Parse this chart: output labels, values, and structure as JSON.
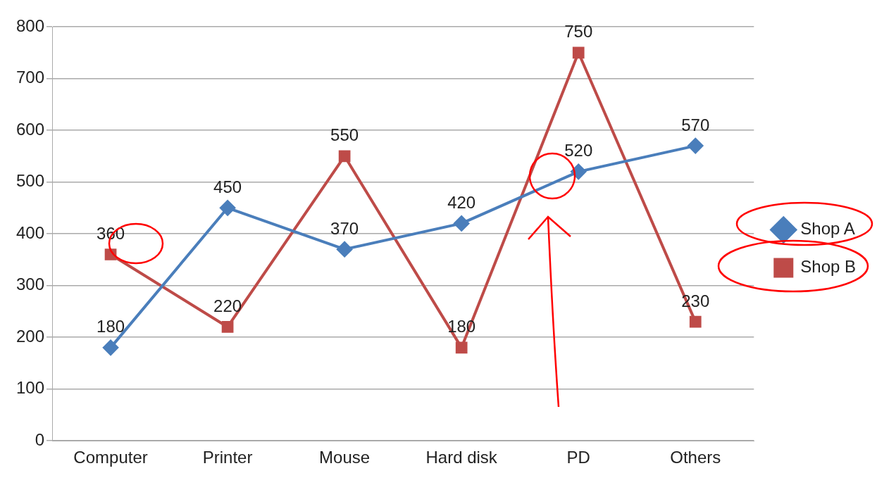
{
  "chart_data": {
    "type": "line",
    "categories": [
      "Computer",
      "Printer",
      "Mouse",
      "Hard disk",
      "PD",
      "Others"
    ],
    "series": [
      {
        "name": "Shop A",
        "color": "#4a7ebb",
        "values": [
          180,
          450,
          370,
          420,
          520,
          570
        ],
        "marker": "diamond"
      },
      {
        "name": "Shop B",
        "color": "#be4b48",
        "values": [
          360,
          220,
          550,
          180,
          750,
          230
        ],
        "marker": "square"
      }
    ],
    "ylim": [
      0,
      800
    ],
    "yticks": [
      0,
      100,
      200,
      300,
      400,
      500,
      600,
      700,
      800
    ],
    "grid": "y",
    "legend": "right",
    "data_labels": true,
    "line_style": "solid"
  }
}
